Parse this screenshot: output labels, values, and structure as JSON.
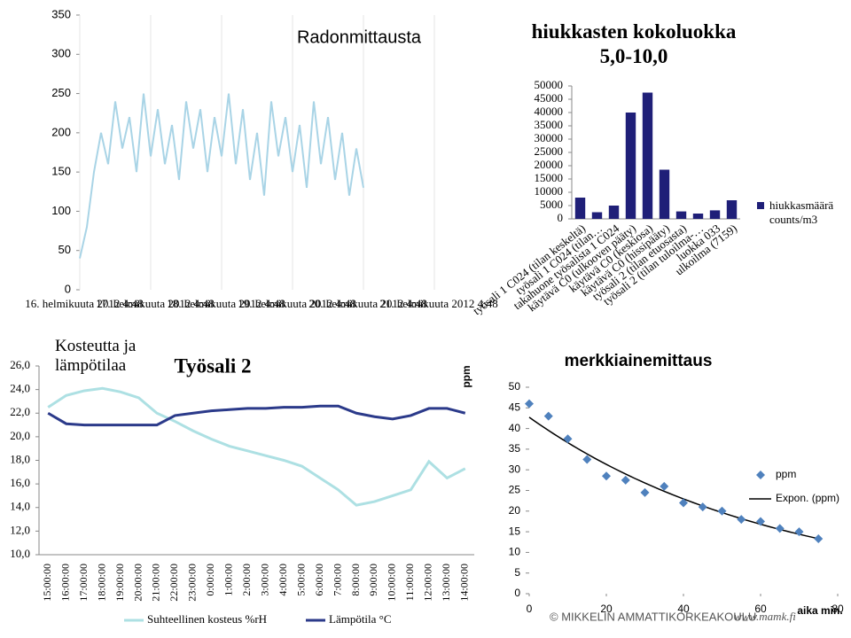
{
  "chart_data": [
    {
      "type": "line",
      "title": "Radonmittausta",
      "categories": [
        "16. helmikuuta 2012 4:48",
        null,
        null,
        null,
        null,
        null,
        null,
        null,
        null,
        null,
        "17. helmikuuta 2012 4:48",
        null,
        null,
        null,
        null,
        null,
        null,
        null,
        null,
        null,
        "18. helmikuuta 2012 4:48",
        null,
        null,
        null,
        null,
        null,
        null,
        null,
        null,
        null,
        "19. helmikuuta 2012 4:48",
        null,
        null,
        null,
        null,
        null,
        null,
        null,
        null,
        null,
        "20. helmikuuta 2012 4:48",
        null,
        null,
        null,
        null,
        null,
        null,
        null,
        null,
        null,
        "21. helmikuuta 2012 4:48"
      ],
      "series": [
        {
          "color": "#a9d4e6",
          "values": [
            40,
            80,
            150,
            200,
            160,
            240,
            180,
            220,
            150,
            250,
            170,
            230,
            160,
            210,
            140,
            240,
            180,
            230,
            150,
            220,
            170,
            250,
            160,
            230,
            140,
            200,
            120,
            240,
            170,
            220,
            150,
            210,
            130,
            240,
            160,
            220,
            140,
            200,
            120,
            180,
            130,
            null,
            null,
            null,
            null,
            null,
            null,
            null,
            null,
            null,
            null
          ]
        }
      ],
      "ylim": [
        0,
        350
      ],
      "yticks": [
        0,
        50,
        100,
        150,
        200,
        250,
        300,
        350
      ]
    },
    {
      "type": "bar",
      "title": "hiukkasten kokoluokka 5,0-10,0",
      "categories": [
        "työsali 1 C024 (tilan keskeltä)",
        "työsali 1 C024 (tilan…",
        "takahuone työsalista 1 C024",
        "käytävä C0 (ulkooven pääty)",
        "käytävä C0 (keskiosa)",
        "käytävä C0 (hissipääty)",
        "työsali 2 (tilan etuosasta)",
        "työsali 2 (tilan tuloilma-…",
        "luokka 033",
        "ulkoilma (7159)"
      ],
      "series": [
        {
          "name": "hiukkasmäärä counts/m3",
          "color": "#1f1f78",
          "values": [
            8000,
            2500,
            5000,
            40000,
            47500,
            18500,
            2800,
            2000,
            3200,
            7000
          ]
        }
      ],
      "ylim": [
        0,
        50000
      ],
      "yticks": [
        0,
        5000,
        10000,
        15000,
        20000,
        25000,
        30000,
        35000,
        40000,
        45000,
        50000
      ],
      "legend": "right"
    },
    {
      "type": "line",
      "title": "Kosteutta ja lämpötilaa",
      "subtitle": "Työsali 2",
      "categories": [
        "15:00:00",
        "16:00:00",
        "17:00:00",
        "18:00:00",
        "19:00:00",
        "20:00:00",
        "21:00:00",
        "22:00:00",
        "23:00:00",
        "0:00:00",
        "1:00:00",
        "2:00:00",
        "3:00:00",
        "4:00:00",
        "5:00:00",
        "6:00:00",
        "7:00:00",
        "8:00:00",
        "9:00:00",
        "10:00:00",
        "11:00:00",
        "12:00:00",
        "13:00:00",
        "14:00:00"
      ],
      "series": [
        {
          "name": "Suhteellinen kosteus %rH",
          "color": "#ade0e3",
          "values": [
            22.5,
            23.5,
            23.9,
            24.1,
            23.8,
            23.3,
            22.0,
            21.3,
            20.5,
            19.8,
            19.2,
            18.8,
            18.4,
            18.0,
            17.5,
            16.5,
            15.5,
            14.2,
            14.5,
            15.0,
            15.5,
            17.9,
            16.5,
            17.3
          ]
        },
        {
          "name": "Lämpötila °C",
          "color": "#2b3a8a",
          "values": [
            22.0,
            21.1,
            21.0,
            21.0,
            21.0,
            21.0,
            21.0,
            21.8,
            22.0,
            22.2,
            22.3,
            22.4,
            22.4,
            22.5,
            22.5,
            22.6,
            22.6,
            22.0,
            21.7,
            21.5,
            21.8,
            22.4,
            22.4,
            22.0
          ]
        }
      ],
      "ylim": [
        10,
        26
      ],
      "yticks": [
        {
          "value": 10,
          "label": "10,0"
        },
        {
          "value": 12,
          "label": "12,0"
        },
        {
          "value": 14,
          "label": "14,0"
        },
        {
          "value": 16,
          "label": "16,0"
        },
        {
          "value": 18,
          "label": "18,0"
        },
        {
          "value": 20,
          "label": "20,0"
        },
        {
          "value": 22,
          "label": "22,0"
        },
        {
          "value": 24,
          "label": "24,0"
        },
        {
          "value": 26,
          "label": "26,0"
        }
      ],
      "legend": "bottom"
    },
    {
      "type": "scatter",
      "title": "merkkiainemittaus",
      "y_label": "ppm",
      "x_label": "aika min.",
      "series": [
        {
          "name": "ppm",
          "color": "#4f81bd",
          "x": [
            0,
            5,
            10,
            15,
            20,
            25,
            30,
            35,
            40,
            45,
            50,
            55,
            60,
            65,
            70,
            75
          ],
          "values": [
            46,
            43,
            37.5,
            32.5,
            28.5,
            27.5,
            24.5,
            26,
            22,
            21,
            20,
            18,
            17.5,
            15.8,
            15,
            13.3
          ]
        }
      ],
      "trendline": {
        "name": "Expon. (ppm)",
        "type": "exponential",
        "color": "#000000"
      },
      "xlim": [
        0,
        80
      ],
      "xticks": [
        0,
        20,
        40,
        60,
        80
      ],
      "ylim": [
        0,
        50
      ],
      "yticks": [
        0,
        5,
        10,
        15,
        20,
        25,
        30,
        35,
        40,
        45,
        50
      ],
      "legend": "right"
    }
  ],
  "footer": {
    "organization": "© MIKKELIN AMMATTIKORKEAKOULU",
    "url": "www.mamk.fi"
  }
}
